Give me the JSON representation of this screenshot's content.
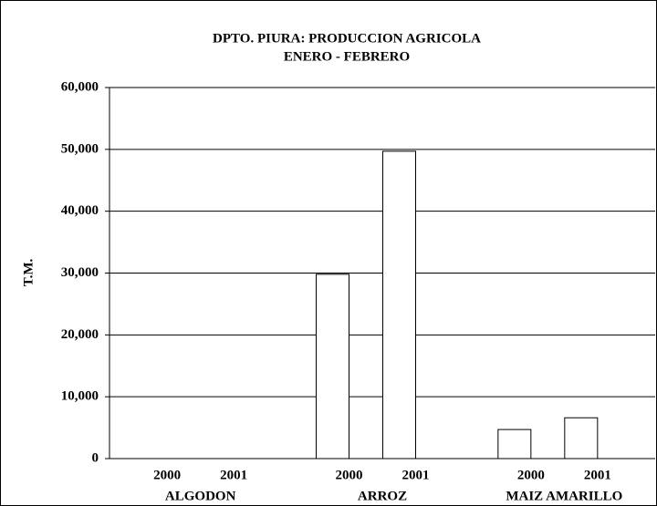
{
  "chart_data": {
    "type": "bar",
    "title": "DPTO. PIURA: PRODUCCION AGRICOLA",
    "subtitle": "ENERO - FEBRERO",
    "y_label": "T.M.",
    "categories": [
      "ALGODON",
      "ARROZ",
      "MAIZ AMARILLO"
    ],
    "series": [
      {
        "name": "2000",
        "color": "#ffffff",
        "values": [
          0,
          29800,
          4700
        ]
      },
      {
        "name": "2001",
        "color": "#ffffff",
        "values": [
          0,
          49700,
          6600
        ]
      }
    ],
    "ylim": [
      0,
      60000
    ],
    "yticks": [
      0,
      {
        "value": 10000,
        "label": "10,000"
      },
      {
        "value": 20000,
        "label": "20,000"
      },
      {
        "value": 30000,
        "label": "30,000"
      },
      {
        "value": 40000,
        "label": "40,000"
      },
      {
        "value": 50000,
        "label": "50,000"
      },
      {
        "value": 60000,
        "label": "60,000"
      }
    ],
    "grid": true
  }
}
